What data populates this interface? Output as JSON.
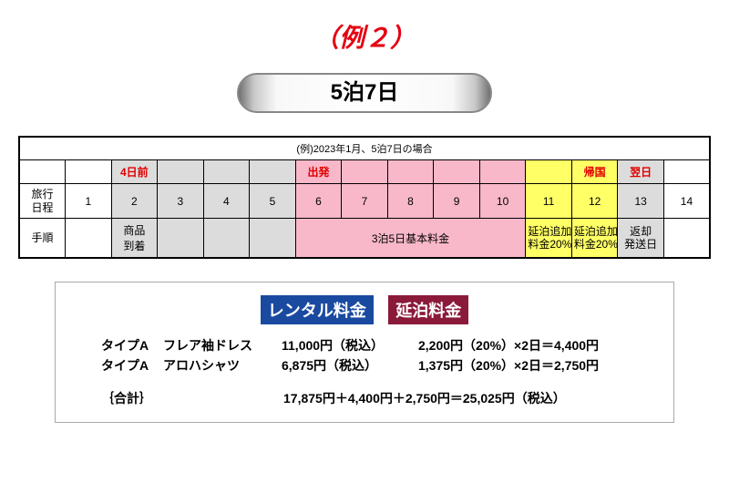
{
  "title": {
    "text": "（例２）",
    "color": "#e60012"
  },
  "pill": {
    "text": "5泊7日"
  },
  "caption": "(例)2023年1月、5泊7日の場合",
  "header_cells": [
    {
      "text": "",
      "class": ""
    },
    {
      "text": "4日前",
      "class": "gray red-bold"
    },
    {
      "text": "",
      "class": "gray"
    },
    {
      "text": "",
      "class": "gray"
    },
    {
      "text": "",
      "class": "gray"
    },
    {
      "text": "出発",
      "class": "pink red-bold"
    },
    {
      "text": "",
      "class": "pink"
    },
    {
      "text": "",
      "class": "pink"
    },
    {
      "text": "",
      "class": "pink"
    },
    {
      "text": "",
      "class": "pink"
    },
    {
      "text": "",
      "class": "yellow"
    },
    {
      "text": "帰国",
      "class": "yellow red-bold"
    },
    {
      "text": "翌日",
      "class": "gray red-bold"
    },
    {
      "text": "",
      "class": ""
    }
  ],
  "row1_label": "旅行\n日程",
  "row1_cells": [
    {
      "text": "1",
      "class": ""
    },
    {
      "text": "2",
      "class": "gray"
    },
    {
      "text": "3",
      "class": "gray"
    },
    {
      "text": "4",
      "class": "gray"
    },
    {
      "text": "5",
      "class": "gray"
    },
    {
      "text": "6",
      "class": "pink"
    },
    {
      "text": "7",
      "class": "pink"
    },
    {
      "text": "8",
      "class": "pink"
    },
    {
      "text": "9",
      "class": "pink"
    },
    {
      "text": "10",
      "class": "pink"
    },
    {
      "text": "11",
      "class": "yellow"
    },
    {
      "text": "12",
      "class": "yellow"
    },
    {
      "text": "13",
      "class": "gray"
    },
    {
      "text": "14",
      "class": ""
    }
  ],
  "row2_label": "手順",
  "row2_cells": {
    "c1": {
      "text": "",
      "class": ""
    },
    "c2": {
      "text": "商品\n到着",
      "class": "gray"
    },
    "c3": {
      "text": "",
      "class": "gray"
    },
    "c4": {
      "text": "",
      "class": "gray"
    },
    "c5": {
      "text": "",
      "class": "gray"
    },
    "c6_10": {
      "text": "3泊5日基本料金",
      "class": "pink"
    },
    "c11": {
      "text": "延泊追加\n料金20%",
      "class": "yellow small"
    },
    "c12": {
      "text": "延泊追加\n料金20%",
      "class": "yellow small"
    },
    "c13": {
      "text": "返却\n発送日",
      "class": "gray small"
    },
    "c14": {
      "text": "",
      "class": ""
    }
  },
  "fee": {
    "badge1": {
      "text": "レンタル料金",
      "bg": "#1a4aa0"
    },
    "badge2": {
      "text": "延泊料金",
      "bg": "#8b1a3a"
    },
    "lines": [
      {
        "type": "タイプA",
        "name": "フレア袖ドレス",
        "base": "11,000円（税込）",
        "ext": "2,200円（20%）×2日＝4,400円"
      },
      {
        "type": "タイプA",
        "name": "アロハシャツ",
        "base": "6,875円（税込）",
        "ext": "1,375円（20%）×2日＝2,750円"
      }
    ],
    "total_label": "｛合計｝",
    "total_value": "17,875円＋4,400円＋2,750円＝25,025円（税込）"
  }
}
